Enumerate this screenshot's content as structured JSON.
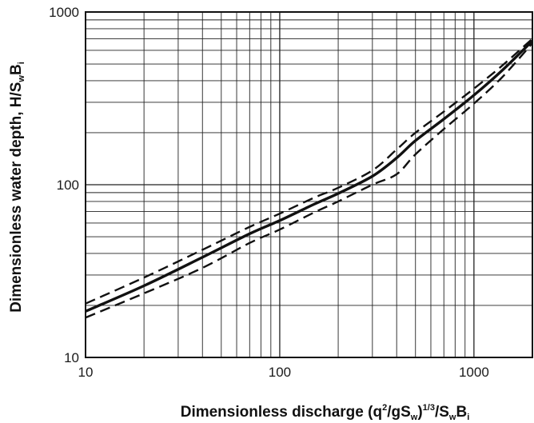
{
  "chart_data": {
    "type": "line",
    "title": "",
    "x_scale": "log",
    "y_scale": "log",
    "xlim": [
      10,
      2000
    ],
    "ylim": [
      10,
      1000
    ],
    "grid": true,
    "legend": "none",
    "xlabel": {
      "main": "Dimensionless discharge (q",
      "sup1": "2",
      "mid1": "/gS",
      "sub1": "w",
      "mid2": ")",
      "sup2": "1/3",
      "mid3": "/S",
      "sub2": "w",
      "mid4": "B",
      "sub3": "i"
    },
    "ylabel": {
      "main": "Dimensionless water depth, H/S",
      "sub1": "w",
      "mid1": "B",
      "sub2": "i"
    },
    "x_ticks": [
      {
        "value": 10,
        "label": "10"
      },
      {
        "value": 100,
        "label": "100"
      },
      {
        "value": 1000,
        "label": "1000"
      }
    ],
    "y_ticks": [
      {
        "value": 10,
        "label": "10"
      },
      {
        "value": 100,
        "label": "100"
      },
      {
        "value": 1000,
        "label": "1000"
      }
    ],
    "series": [
      {
        "style": "solid",
        "x": [
          10,
          20,
          40,
          70,
          100,
          150,
          200,
          300,
          400,
          500,
          700,
          1000,
          1400,
          2000
        ],
        "y": [
          18.5,
          26,
          38,
          52,
          62,
          77,
          89,
          112,
          143,
          180,
          240,
          330,
          460,
          680
        ]
      },
      {
        "style": "dashed",
        "x": [
          10,
          20,
          40,
          70,
          100,
          150,
          200,
          300,
          400,
          500,
          700,
          1000,
          1400,
          2000
        ],
        "y": [
          20.5,
          29,
          42,
          57,
          68,
          84,
          96,
          121,
          160,
          200,
          265,
          360,
          490,
          700
        ]
      },
      {
        "style": "dashed",
        "x": [
          10,
          20,
          40,
          70,
          100,
          150,
          200,
          300,
          400,
          500,
          700,
          1000,
          1400,
          2000
        ],
        "y": [
          17,
          23.5,
          33,
          46,
          55,
          69,
          80,
          100,
          115,
          150,
          210,
          295,
          420,
          660
        ]
      }
    ]
  }
}
